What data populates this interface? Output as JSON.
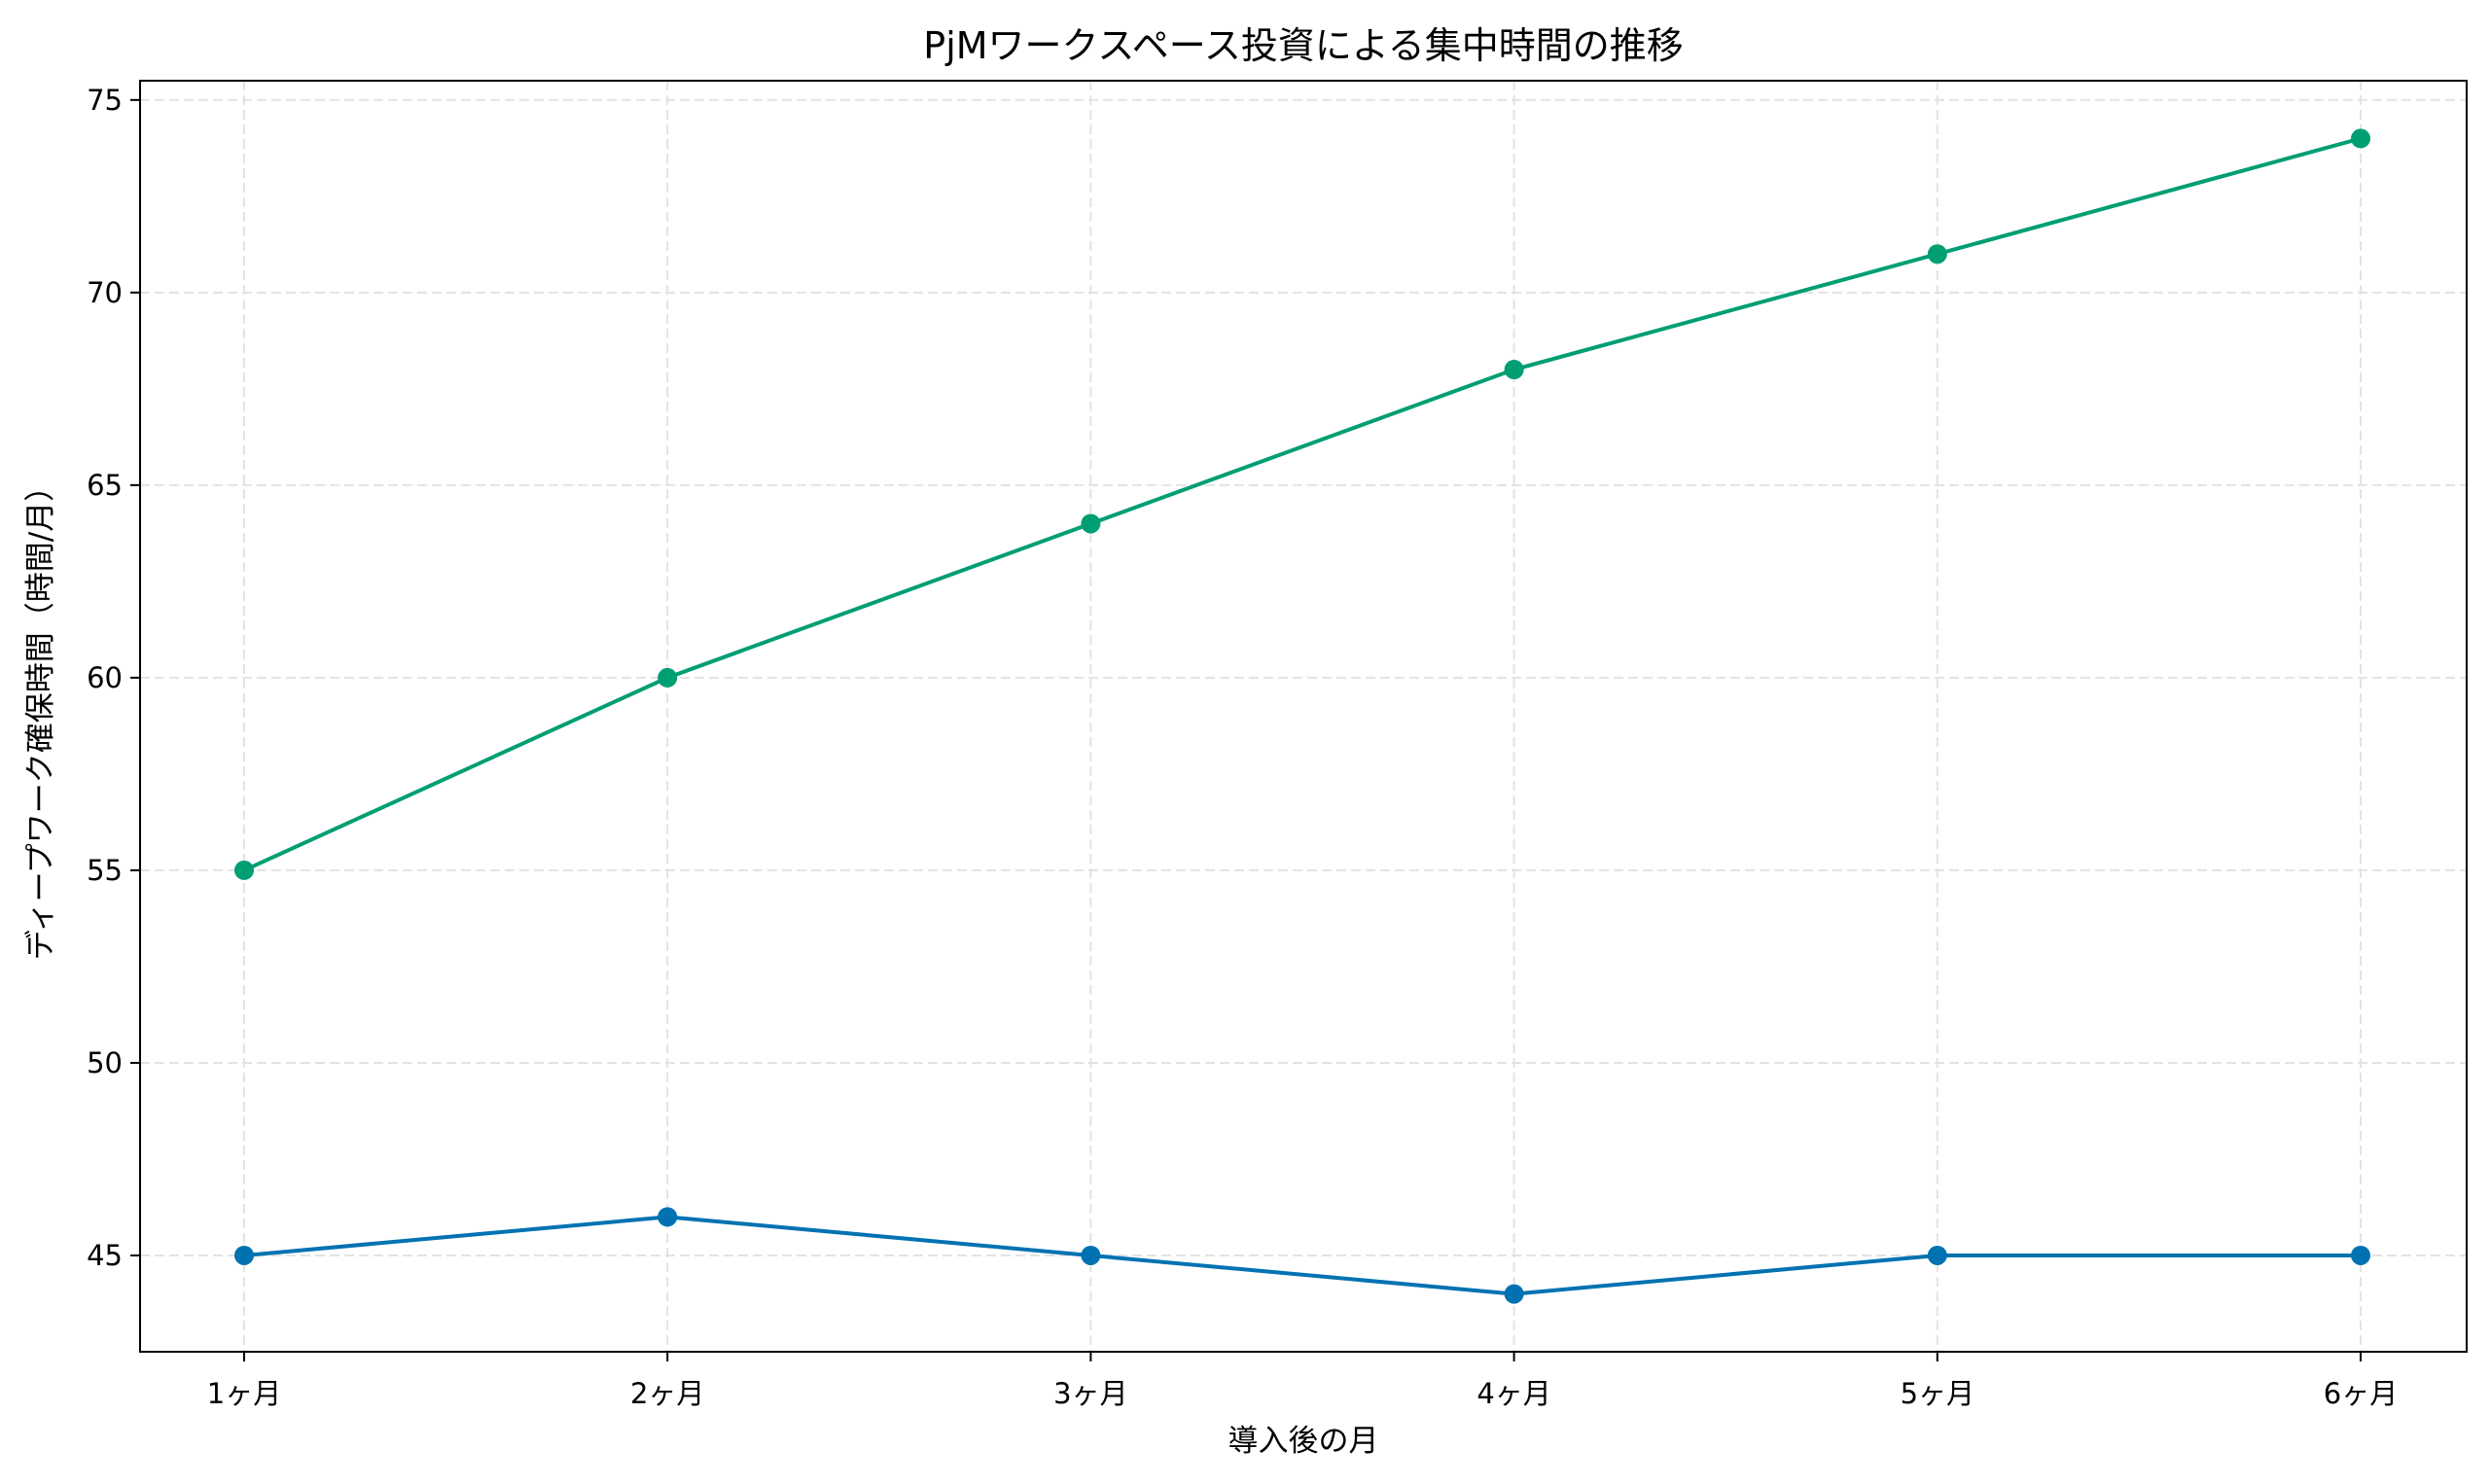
{
  "chart_data": {
    "type": "line",
    "title": "PjMワークスペース投資による集中時間の推移",
    "xlabel": "導入後の月",
    "ylabel": "ディープワーク確保時間（時間/月）",
    "categories": [
      "1ヶ月",
      "2ヶ月",
      "3ヶ月",
      "4ヶ月",
      "5ヶ月",
      "6ヶ月"
    ],
    "ylim": [
      42.5,
      75.5
    ],
    "yticks": [
      45,
      50,
      55,
      60,
      65,
      70,
      75
    ],
    "grid": true,
    "series": [
      {
        "values": [
          55,
          60,
          64,
          68,
          71,
          74
        ],
        "color": "#009E73",
        "marker": "circle"
      },
      {
        "values": [
          45,
          46,
          45,
          44,
          45,
          45
        ],
        "color": "#0072B2",
        "marker": "circle"
      }
    ]
  }
}
